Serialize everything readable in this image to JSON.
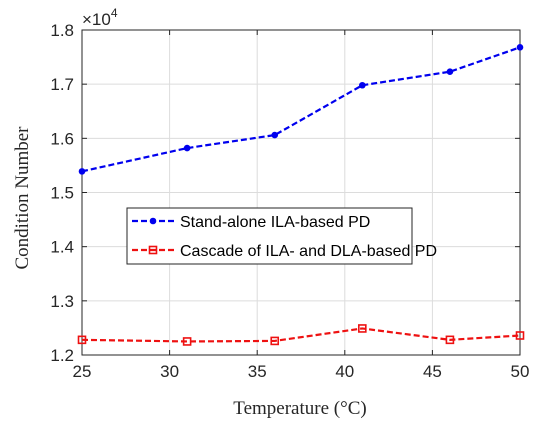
{
  "chart_data": {
    "type": "line",
    "xlabel": "Temperature (°C)",
    "ylabel": "Condition Number",
    "y_exponent_label": "×10",
    "y_exponent_power": "4",
    "xlim": [
      25,
      50
    ],
    "ylim": [
      1.2,
      1.8
    ],
    "xticks": [
      "25",
      "30",
      "35",
      "40",
      "45",
      "50"
    ],
    "yticks": [
      "1.2",
      "1.3",
      "1.4",
      "1.5",
      "1.6",
      "1.7",
      "1.8"
    ],
    "grid": true,
    "legend_placement": "center",
    "x": [
      25,
      31,
      36,
      41,
      46,
      50
    ],
    "series": [
      {
        "name": "Stand-alone ILA-based PD",
        "color": "#0000ee",
        "marker": "circle",
        "values": [
          1.539,
          1.582,
          1.606,
          1.698,
          1.723,
          1.768
        ]
      },
      {
        "name": "Cascade of ILA- and DLA-based PD",
        "color": "#ee1111",
        "marker": "square",
        "values": [
          1.228,
          1.225,
          1.226,
          1.249,
          1.228,
          1.236
        ]
      }
    ]
  }
}
